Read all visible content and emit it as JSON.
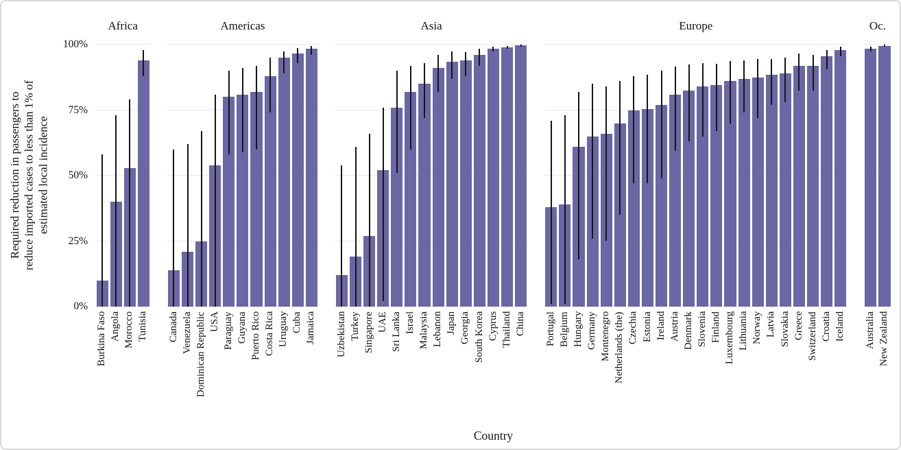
{
  "y_axis": {
    "label": "Required reduction in passengers to\nreduce imported cases to less than 1% of\nestimated local incidence",
    "ticks": [
      "100%",
      "75%",
      "50%",
      "25%",
      "0%"
    ]
  },
  "x_axis": {
    "label": "Country"
  },
  "colors": {
    "bar": "#6b67a4",
    "error_bar": "#151515",
    "gridline": "#e8e8e8",
    "background": "#ffffff"
  },
  "chart_data": {
    "type": "bar",
    "title": "",
    "xlabel": "Country",
    "ylabel": "Required reduction in passengers to reduce imported cases to less than 1% of estimated local incidence",
    "ylim": [
      0,
      100
    ],
    "ytick_values": [
      0,
      25,
      50,
      75,
      100
    ],
    "grid": true,
    "legend": false,
    "error_bars": true,
    "facets": [
      {
        "name": "Africa",
        "countries": [
          "Burkina Faso",
          "Angola",
          "Morocco",
          "Tunisia"
        ],
        "values": [
          10,
          40,
          53,
          94
        ],
        "error_low": [
          0,
          0,
          0,
          88
        ],
        "error_high": [
          58,
          73,
          79,
          98
        ]
      },
      {
        "name": "Americas",
        "countries": [
          "Canada",
          "Venezuela",
          "Dominican Republic",
          "USA",
          "Paraguay",
          "Guyana",
          "Puerto Rico",
          "Costa Rica",
          "Uruguay",
          "Cuba",
          "Jamaica"
        ],
        "values": [
          14,
          21,
          25,
          54,
          80,
          81,
          82,
          88,
          95,
          96.5,
          98.4
        ],
        "error_low": [
          0,
          0,
          0,
          0,
          58,
          59,
          60,
          74,
          89,
          93,
          96
        ],
        "error_high": [
          60,
          62,
          67,
          81,
          90,
          91,
          92,
          95,
          97.3,
          98.6,
          99.5
        ]
      },
      {
        "name": "Asia",
        "countries": [
          "Uzbekistan",
          "Turkey",
          "Singapore",
          "UAE",
          "Sri Lanka",
          "Israel",
          "Malaysia",
          "Lebanon",
          "Japan",
          "Georgia",
          "South Korea",
          "Cyprus",
          "Thailand",
          "China"
        ],
        "values": [
          12,
          19,
          27,
          52,
          76,
          82,
          85,
          91,
          93.5,
          94,
          96,
          98.5,
          99,
          99.7
        ],
        "error_low": [
          0,
          0,
          0,
          2,
          51,
          60,
          72,
          82,
          87,
          88,
          92,
          97.3,
          98.4,
          99.3
        ],
        "error_high": [
          54,
          61,
          66,
          76,
          90,
          92,
          93,
          96,
          97.5,
          97,
          98.3,
          99.2,
          99.6,
          99.9
        ]
      },
      {
        "name": "Europe",
        "countries": [
          "Portugal",
          "Belgium",
          "Hungary",
          "Germany",
          "Montenegro",
          "Netherlands (the)",
          "Czechia",
          "Estonia",
          "Ireland",
          "Austria",
          "Denmark",
          "Slovenia",
          "Finland",
          "Luxembourg",
          "Lithuania",
          "Norway",
          "Latvia",
          "Slovakia",
          "Greece",
          "Switzerland",
          "Croatia",
          "Iceland"
        ],
        "values": [
          38,
          39,
          61,
          65,
          66,
          70,
          75,
          75.5,
          77,
          81,
          82.5,
          84,
          84.5,
          86,
          87,
          87.5,
          88.5,
          89,
          92,
          92,
          95.5,
          98
        ],
        "error_low": [
          1,
          1,
          18,
          26,
          25,
          35,
          47,
          47,
          49,
          59.5,
          63,
          65,
          67,
          70,
          74,
          72,
          77,
          78,
          82.5,
          82.5,
          90.5,
          95.5
        ],
        "error_high": [
          71,
          73,
          82,
          85,
          84,
          86,
          88,
          88.5,
          90,
          91.5,
          92.5,
          93,
          92.7,
          93.6,
          94,
          94.5,
          94.5,
          95,
          96.5,
          96,
          98,
          99.2
        ]
      },
      {
        "name": "Oc.",
        "countries": [
          "Australia",
          "New Zealand"
        ],
        "values": [
          98.5,
          99.6
        ],
        "error_low": [
          97.3,
          99.2
        ],
        "error_high": [
          99.3,
          99.9
        ]
      }
    ]
  }
}
